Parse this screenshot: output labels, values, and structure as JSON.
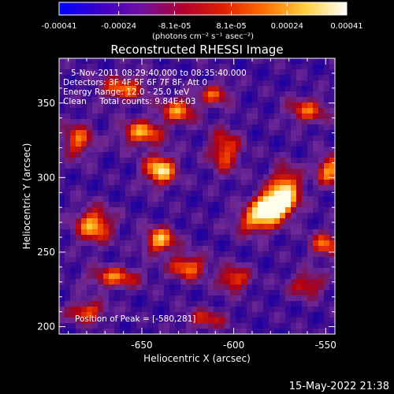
{
  "colorbar": {
    "ticks": [
      "-0.00041",
      "-0.00024",
      "-8.1e-05",
      "8.1e-05",
      "0.00024",
      "0.00041"
    ],
    "tick_values": [
      -0.00041,
      -0.00024,
      -8.1e-05,
      8.1e-05,
      0.00024,
      0.00041
    ],
    "range": [
      -0.00041,
      0.00041
    ],
    "units": "(photons cm⁻² s⁻¹ asec⁻²)",
    "colors": [
      "#0000ff",
      "#3c00c8",
      "#6e10a0",
      "#b00030",
      "#e02000",
      "#ff7000",
      "#ffd040",
      "#ffffff"
    ]
  },
  "chart_data": {
    "type": "heatmap",
    "title": "Reconstructed RHESSI Image",
    "xlabel": "Heliocentric X (arcsec)",
    "ylabel": "Heliocentric Y (arcsec)",
    "xlim": [
      -695,
      -545
    ],
    "ylim": [
      195,
      380
    ],
    "xticks": [
      -650,
      -600,
      -550
    ],
    "yticks": [
      200,
      250,
      300,
      350
    ],
    "annotations": {
      "time": "5-Nov-2011 08:29:40.000 to 08:35:40.000",
      "detectors": "Detectors: 3F 4F 5F 6F 7F 8F, Att 0",
      "energy": "Energy Range: 12.0 - 25.0 keV",
      "clean": "Clean     Total counts: 9.84E+03",
      "peak": "Position of Peak = [-580,281]"
    },
    "peak": {
      "x": -580,
      "y": 281
    },
    "sources": [
      {
        "x": -580,
        "y": 281,
        "amp": 1.0,
        "sx": 7,
        "sy": 6
      },
      {
        "x": -572,
        "y": 292,
        "amp": 0.75,
        "sx": 6,
        "sy": 10
      },
      {
        "x": -588,
        "y": 270,
        "amp": 0.6,
        "sx": 8,
        "sy": 6
      },
      {
        "x": -640,
        "y": 305,
        "amp": 0.82,
        "sx": 6,
        "sy": 7
      },
      {
        "x": -650,
        "y": 330,
        "amp": 0.65,
        "sx": 8,
        "sy": 6
      },
      {
        "x": -630,
        "y": 345,
        "amp": 0.6,
        "sx": 7,
        "sy": 6
      },
      {
        "x": -660,
        "y": 360,
        "amp": 0.55,
        "sx": 9,
        "sy": 6
      },
      {
        "x": -685,
        "y": 325,
        "amp": 0.55,
        "sx": 6,
        "sy": 8
      },
      {
        "x": -676,
        "y": 268,
        "amp": 0.7,
        "sx": 7,
        "sy": 8
      },
      {
        "x": -640,
        "y": 258,
        "amp": 0.72,
        "sx": 6,
        "sy": 6
      },
      {
        "x": -665,
        "y": 233,
        "amp": 0.55,
        "sx": 10,
        "sy": 5
      },
      {
        "x": -625,
        "y": 240,
        "amp": 0.6,
        "sx": 7,
        "sy": 6
      },
      {
        "x": -605,
        "y": 318,
        "amp": 0.55,
        "sx": 6,
        "sy": 10
      },
      {
        "x": -610,
        "y": 356,
        "amp": 0.5,
        "sx": 6,
        "sy": 5
      },
      {
        "x": -560,
        "y": 345,
        "amp": 0.5,
        "sx": 8,
        "sy": 6
      },
      {
        "x": -548,
        "y": 305,
        "amp": 0.65,
        "sx": 5,
        "sy": 7
      },
      {
        "x": -550,
        "y": 255,
        "amp": 0.55,
        "sx": 6,
        "sy": 6
      },
      {
        "x": -600,
        "y": 232,
        "amp": 0.55,
        "sx": 6,
        "sy": 6
      },
      {
        "x": -560,
        "y": 228,
        "amp": 0.45,
        "sx": 7,
        "sy": 6
      },
      {
        "x": -680,
        "y": 210,
        "amp": 0.55,
        "sx": 7,
        "sy": 5
      },
      {
        "x": -615,
        "y": 205,
        "amp": 0.4,
        "sx": 8,
        "sy": 5
      }
    ]
  },
  "footer": {
    "date": "15-May-2022 21:38"
  }
}
